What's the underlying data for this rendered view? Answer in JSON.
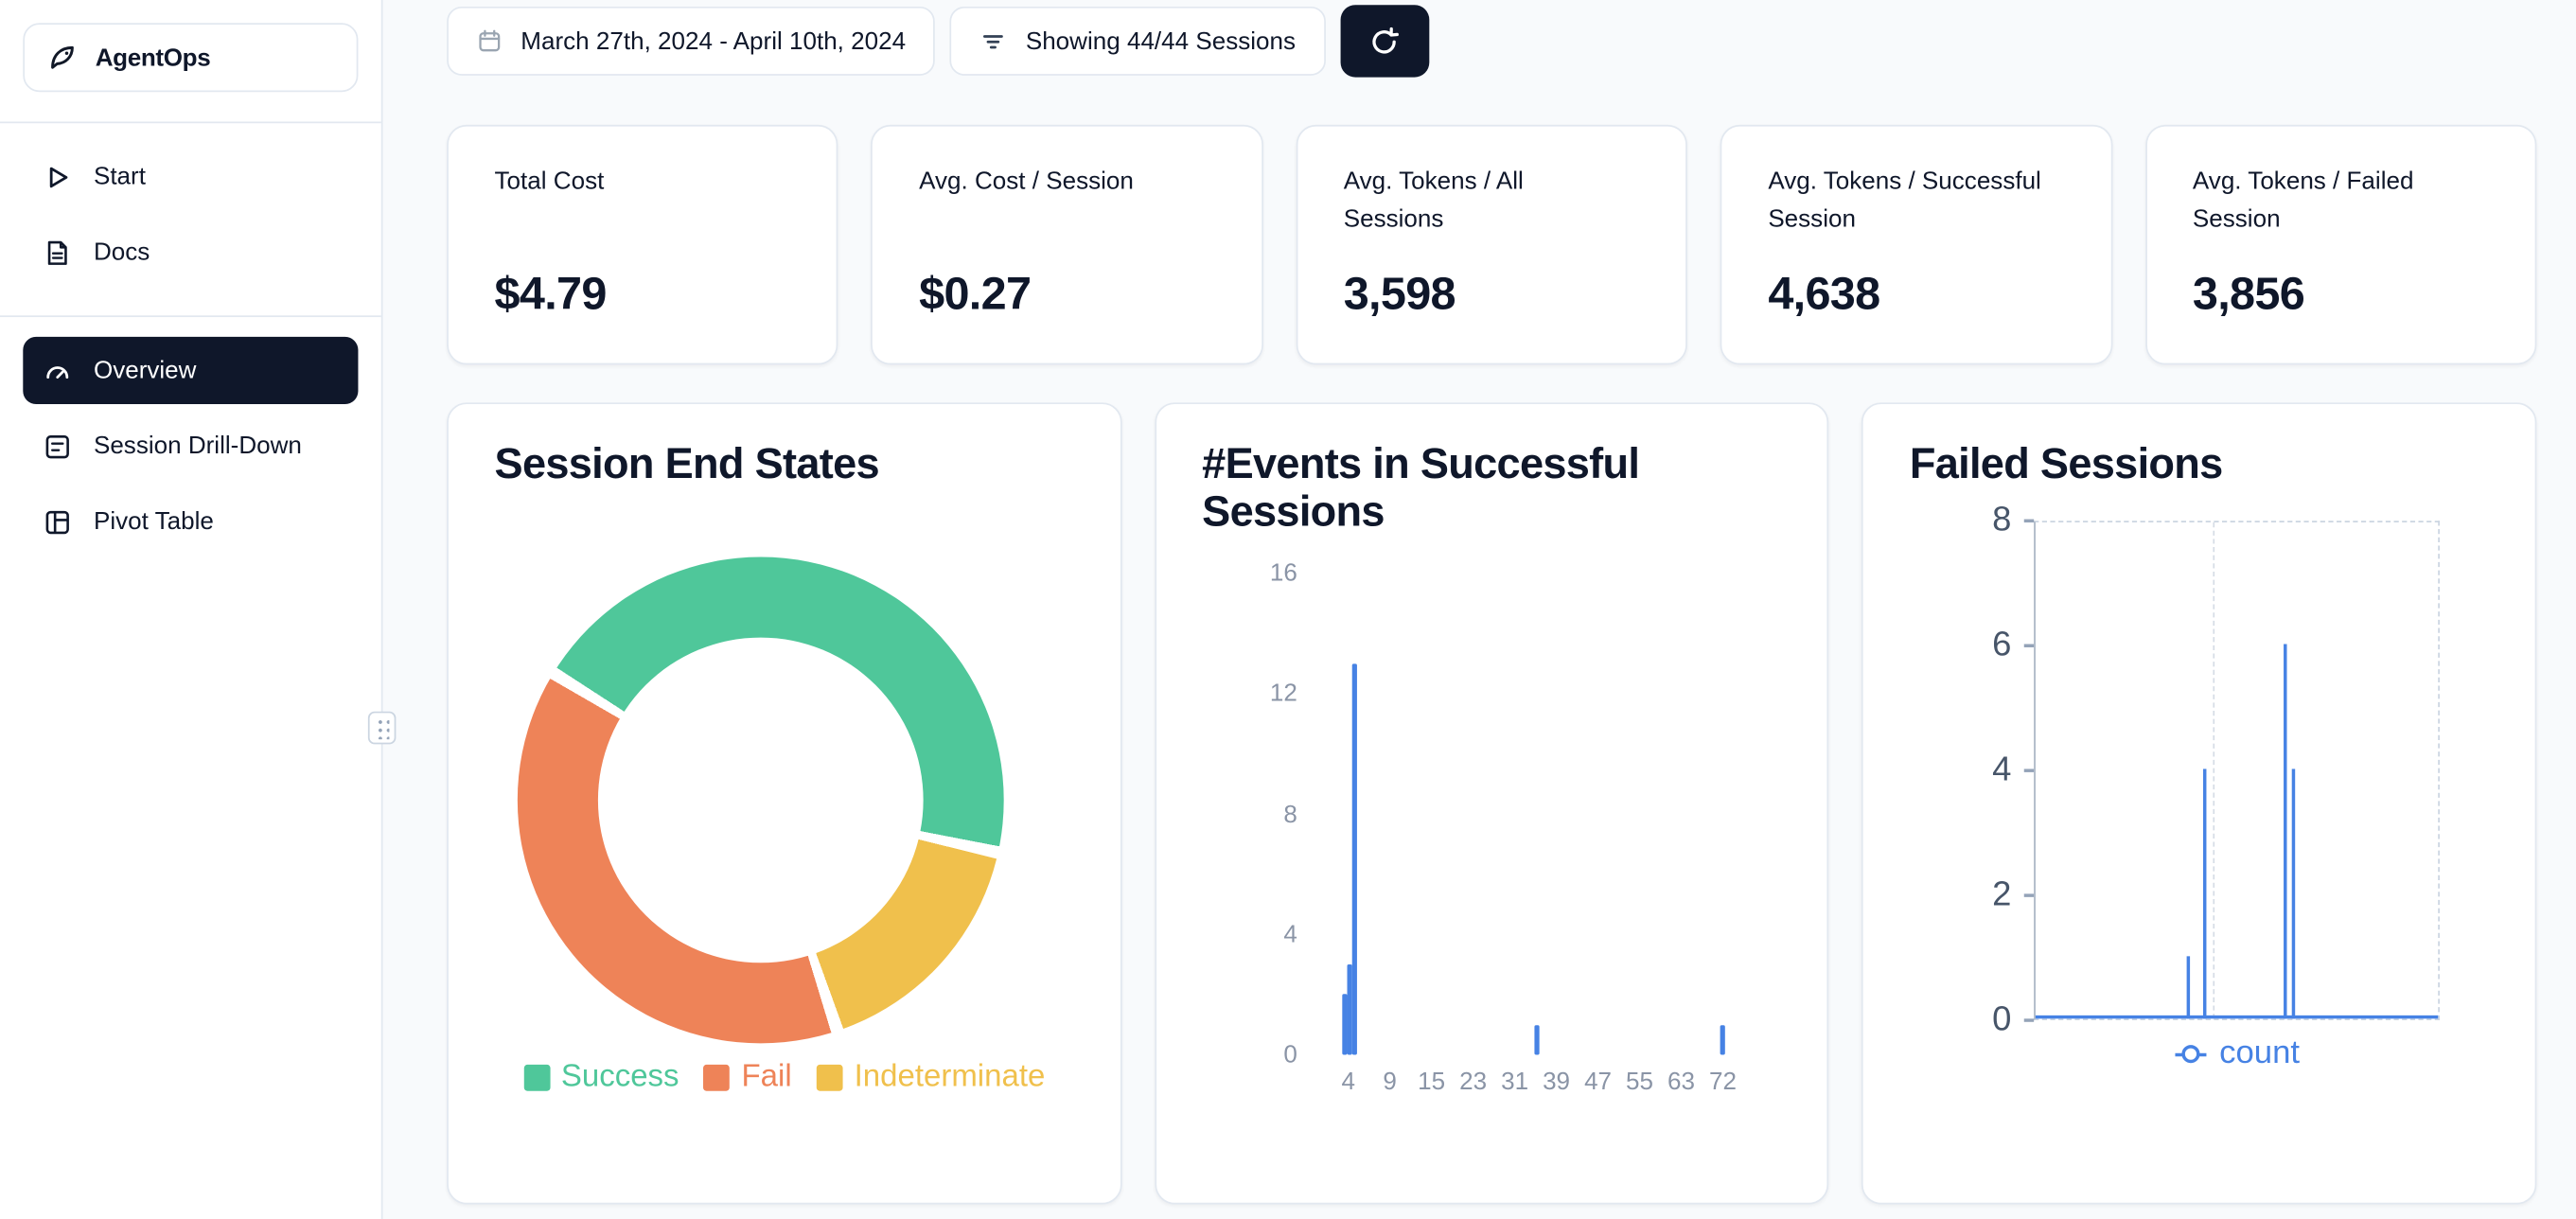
{
  "app": {
    "name": "AgentOps"
  },
  "sidebar": {
    "items": [
      {
        "label": "Start",
        "icon": "play-icon",
        "active": false
      },
      {
        "label": "Docs",
        "icon": "document-icon",
        "active": false
      },
      {
        "label": "Overview",
        "icon": "gauge-icon",
        "active": true
      },
      {
        "label": "Session Drill-Down",
        "icon": "session-list-icon",
        "active": false
      },
      {
        "label": "Pivot Table",
        "icon": "pivot-table-icon",
        "active": false
      }
    ]
  },
  "toolbar": {
    "date_range_label": "March 27th, 2024 - April 10th, 2024",
    "sessions_filter_label": "Showing 44/44 Sessions",
    "refresh_icon": "refresh-icon",
    "date_icon": "calendar-icon",
    "filter_icon": "filter-icon"
  },
  "stats": [
    {
      "label": "Total Cost",
      "value": "$4.79"
    },
    {
      "label": "Avg. Cost / Session",
      "value": "$0.27"
    },
    {
      "label": "Avg. Tokens / All Sessions",
      "value": "3,598"
    },
    {
      "label": "Avg. Tokens / Successful Session",
      "value": "4,638"
    },
    {
      "label": "Avg. Tokens / Failed Session",
      "value": "3,856"
    }
  ],
  "colors": {
    "accent_dark": "#0f172a",
    "card_border": "#e2e8f0",
    "background": "#f8fafc",
    "success": "#4fc79a",
    "fail": "#ee8358",
    "indeterminate": "#f0c04c",
    "chart_blue": "#4682e4"
  },
  "chart_data": [
    {
      "type": "pie",
      "title": "Session End States",
      "donut": true,
      "start_angle": -57,
      "gap_deg": 3,
      "slices": [
        {
          "label": "Success",
          "pct": 45,
          "color": "#4fc79a"
        },
        {
          "label": "Indeterminate",
          "pct": 16,
          "color": "#f0c04c"
        },
        {
          "label": "Fail",
          "pct": 39,
          "color": "#ee8358"
        }
      ],
      "legend": [
        {
          "label": "Success",
          "color": "#4fc79a"
        },
        {
          "label": "Fail",
          "color": "#ee8358"
        },
        {
          "label": "Indeterminate",
          "color": "#f0c04c"
        }
      ],
      "legend_position": "bottom"
    },
    {
      "type": "bar",
      "title": "#Events in Successful Sessions",
      "color": "#4682e4",
      "ylim": [
        0,
        16
      ],
      "yticks": [
        16,
        12,
        8,
        4,
        0
      ],
      "xticks": [
        4,
        9,
        15,
        23,
        31,
        39,
        47,
        55,
        63,
        72
      ],
      "x_range": [
        0,
        76
      ],
      "bars": [
        {
          "x": 3,
          "count": 2
        },
        {
          "x": 4,
          "count": 3
        },
        {
          "x": 5,
          "count": 13
        },
        {
          "x": 38,
          "count": 1
        },
        {
          "x": 72,
          "count": 1
        }
      ],
      "grid": false
    },
    {
      "type": "line",
      "title": "Failed Sessions",
      "color": "#4682e4",
      "ylim": [
        0,
        8
      ],
      "yticks": [
        8,
        6,
        4,
        2,
        0
      ],
      "series": [
        {
          "name": "count",
          "baseline": 0,
          "spikes": [
            {
              "x_frac": 0.376,
              "value": 1
            },
            {
              "x_frac": 0.417,
              "value": 4
            },
            {
              "x_frac": 0.615,
              "value": 6
            },
            {
              "x_frac": 0.636,
              "value": 4
            }
          ]
        }
      ],
      "legend": [
        {
          "label": "count",
          "color": "#4682e4"
        }
      ],
      "legend_position": "bottom",
      "grid": "dashed"
    }
  ]
}
